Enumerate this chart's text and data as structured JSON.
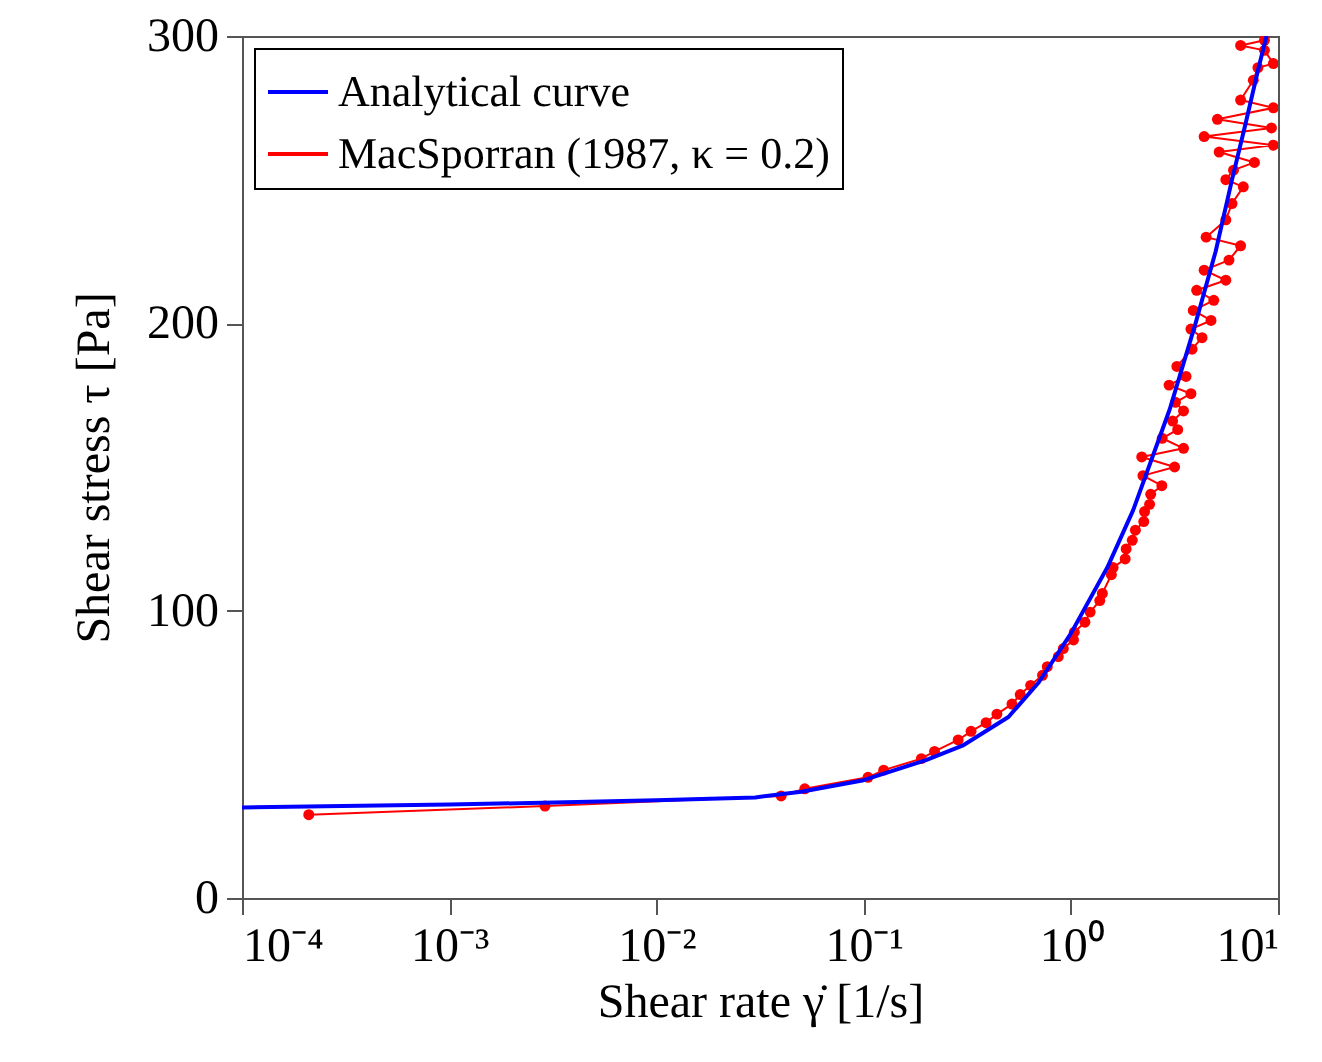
{
  "chart_data": {
    "type": "line",
    "xlabel": "Shear rate γ̇ [1/s]",
    "ylabel": "Shear stress τ [Pa]",
    "log": "x",
    "xlim": [
      0.0001,
      10
    ],
    "ylim": [
      0,
      300
    ],
    "xticks": [
      {
        "value": 0.0001,
        "label": "10⁻⁴"
      },
      {
        "value": 0.001,
        "label": "10⁻³"
      },
      {
        "value": 0.01,
        "label": "10⁻²"
      },
      {
        "value": 0.1,
        "label": "10⁻¹"
      },
      {
        "value": 1,
        "label": "10⁰"
      },
      {
        "value": 10,
        "label": "10¹"
      }
    ],
    "yticks": [
      0,
      100,
      200,
      300
    ],
    "grid": false,
    "legend": "top left",
    "line_style": "solid",
    "series": [
      {
        "name": "Analytical curve",
        "color": "#0000ff",
        "marker": "none",
        "x": [
          0.0001,
          0.001,
          0.01,
          0.03,
          0.05,
          0.1,
          0.2,
          0.3,
          0.5,
          0.7,
          1,
          1.5,
          2,
          3,
          4,
          5,
          6,
          7,
          8,
          8.8
        ],
        "values": [
          31.5,
          32.5,
          34,
          35,
          37,
          41,
          48,
          53,
          63,
          75,
          92,
          115,
          135,
          170,
          200,
          225,
          250,
          270,
          288,
          300
        ]
      },
      {
        "name": "MacSporran (1987, κ = 0.2)",
        "color": "#ff0000",
        "marker": "circle",
        "x": [
          0.00021,
          0.0029,
          0.04,
          0.052,
          0.105,
          0.125,
          0.19,
          0.22,
          0.286,
          0.33,
          0.39,
          0.44,
          0.52,
          0.57,
          0.64,
          0.73,
          0.77,
          0.87,
          0.92,
          1.03,
          1.04,
          1.17,
          1.24,
          1.38,
          1.42,
          1.57,
          1.6,
          1.83,
          1.85,
          1.98,
          2.05,
          2.25,
          2.27,
          2.4,
          2.43,
          2.75,
          2.23,
          3.17,
          2.2,
          3.5,
          2.76,
          3.28,
          3.1,
          3.5,
          3.2,
          3.8,
          2.98,
          3.6,
          3.25,
          3.85,
          4.3,
          3.8,
          4.75,
          3.9,
          4.9,
          4.05,
          5.6,
          4.4,
          5.8,
          6.6,
          4.5,
          5.6,
          6.0,
          6.8,
          5.6,
          6.1,
          7.7,
          5.2,
          9.5,
          4.4,
          9.3,
          5.1,
          9.5,
          6.6,
          7.6,
          8.0,
          9.5,
          8.6,
          6.6,
          8.6
        ],
        "values": [
          29,
          32,
          35.5,
          38,
          42,
          44.5,
          48.5,
          51,
          55,
          58,
          61,
          64,
          67.5,
          70.8,
          74,
          77.5,
          80.5,
          84,
          86.8,
          89.8,
          92.5,
          96,
          99.5,
          103.5,
          106,
          112.5,
          115,
          118,
          121.5,
          124.5,
          128,
          131,
          134.5,
          137,
          140.5,
          143.5,
          147,
          150,
          153.5,
          156.5,
          160,
          163,
          166,
          169.5,
          172.5,
          175.5,
          178.5,
          181.5,
          185,
          191,
          195,
          198,
          201,
          204.5,
          208,
          211.5,
          215,
          218.5,
          222,
          227,
          230,
          236,
          241.7,
          247.5,
          250,
          253.3,
          256,
          259.6,
          262,
          265,
          268,
          271,
          275,
          277.7,
          284.6,
          289,
          290.4,
          295,
          296.7,
          298.5
        ]
      }
    ]
  }
}
